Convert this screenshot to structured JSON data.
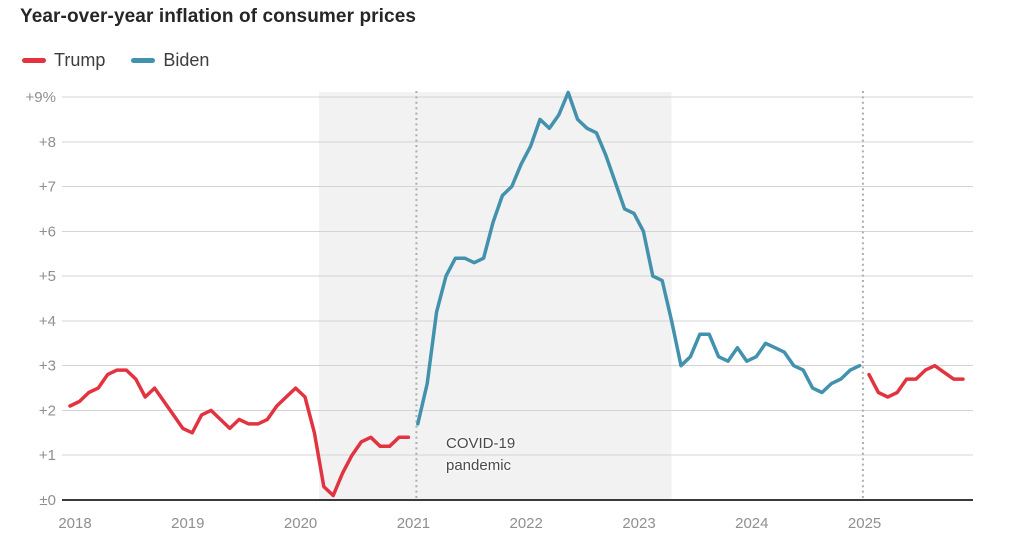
{
  "title": "Year-over-year inflation of consumer prices",
  "legend": {
    "items": [
      {
        "label": "Trump",
        "color": "#e23440"
      },
      {
        "label": "Biden",
        "color": "#4292ae"
      }
    ]
  },
  "colors": {
    "trump_red": "#e23440",
    "biden_blue": "#4292ae",
    "covid_band": "#f2f2f2",
    "gridline": "#d4d4d4",
    "axis_line": "#3a3a3a",
    "tick_label": "#8f8f8f",
    "divider_dotted": "#adadad"
  },
  "chart_data": {
    "type": "line",
    "title": "Year-over-year inflation of consumer prices",
    "xlabel": "",
    "ylabel": "",
    "unit": "percent, year-over-year",
    "grid": true,
    "legend_position": "top-left",
    "ylim": [
      0,
      9.2
    ],
    "x_axis": {
      "tick_labels": [
        "2018",
        "2019",
        "2020",
        "2021",
        "2022",
        "2023",
        "2024",
        "2025"
      ],
      "tick_month_index": [
        0,
        12,
        24,
        36,
        48,
        60,
        72,
        84
      ]
    },
    "y_axis": {
      "tick_labels": [
        "±0",
        "+1",
        "+2",
        "+3",
        "+4",
        "+5",
        "+6",
        "+7",
        "+8",
        "+9%"
      ],
      "tick_values": [
        0,
        1,
        2,
        3,
        4,
        5,
        6,
        7,
        8,
        9
      ]
    },
    "series": [
      {
        "name": "Trump",
        "color": "#e23440",
        "start_label": "Jan 2018",
        "start_month_index": 0,
        "values": [
          2.1,
          2.2,
          2.4,
          2.5,
          2.8,
          2.9,
          2.9,
          2.7,
          2.3,
          2.5,
          2.2,
          1.9,
          1.6,
          1.5,
          1.9,
          2.0,
          1.8,
          1.6,
          1.8,
          1.7,
          1.7,
          1.8,
          2.1,
          2.3,
          2.5,
          2.3,
          1.5,
          0.3,
          0.1,
          0.6,
          1.0,
          1.3,
          1.4,
          1.2,
          1.2,
          1.4,
          1.4
        ]
      },
      {
        "name": "Biden",
        "color": "#4292ae",
        "start_label": "Feb 2021",
        "start_month_index": 37,
        "values": [
          1.7,
          2.6,
          4.2,
          5.0,
          5.4,
          5.4,
          5.3,
          5.4,
          6.2,
          6.8,
          7.0,
          7.5,
          7.9,
          8.5,
          8.3,
          8.6,
          9.1,
          8.5,
          8.3,
          8.2,
          7.7,
          7.1,
          6.5,
          6.4,
          6.0,
          5.0,
          4.9,
          4.0,
          3.0,
          3.2,
          3.7,
          3.7,
          3.2,
          3.1,
          3.4,
          3.1,
          3.2,
          3.5,
          3.4,
          3.3,
          3.0,
          2.9,
          2.5,
          2.4,
          2.6,
          2.7,
          2.9,
          3.0
        ]
      },
      {
        "name": "Trump",
        "color": "#e23440",
        "start_label": "Feb 2025",
        "start_month_index": 85,
        "values": [
          2.8,
          2.4,
          2.3,
          2.4,
          2.7,
          2.7,
          2.9,
          3.0,
          2.85,
          2.7,
          2.7
        ]
      }
    ],
    "covid_band": {
      "label_line1": "COVID-19",
      "label_line2": "pandemic",
      "start_month_index": 26.5,
      "end_month_index": 64
    },
    "term_divider_month_index": [
      36.85,
      84.35
    ]
  }
}
